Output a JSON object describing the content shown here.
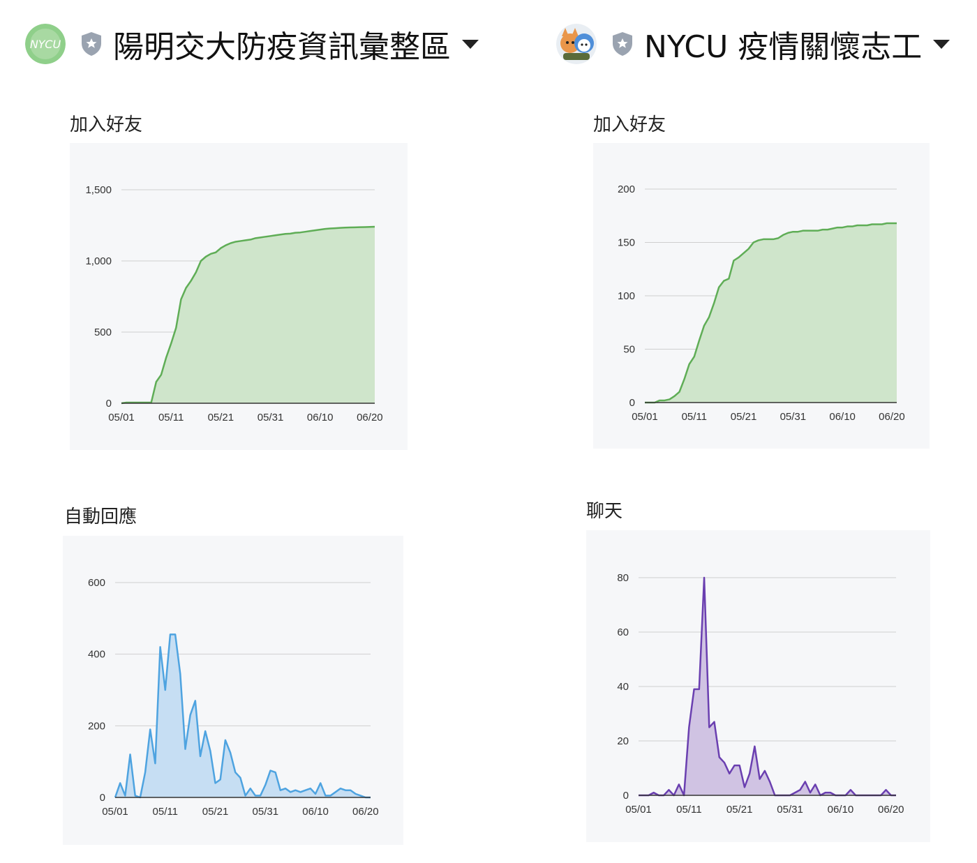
{
  "accounts": [
    {
      "name": "陽明交大防疫資訊彙整區",
      "avatar_text": "NYCU",
      "shield_icon": "shield-star-icon",
      "dropdown_icon": "caret-down-icon"
    },
    {
      "name": "NYCU 疫情關懷志工",
      "avatar_icon": "mascot-avatar",
      "shield_icon": "shield-star-icon",
      "dropdown_icon": "caret-down-icon"
    }
  ],
  "colors": {
    "green_line": "#5fad56",
    "green_fill": "#cfe5cb",
    "blue_line": "#4ea3e0",
    "blue_fill": "#c6def3",
    "purple_line": "#6a3fb0",
    "purple_fill": "#d0c3e3",
    "grid": "#cfcfcf",
    "panel_bg": "#f6f7f9"
  },
  "chart_data": [
    {
      "type": "area",
      "title": "加入好友",
      "x_ticks": [
        "05/01",
        "05/11",
        "05/21",
        "05/31",
        "06/10",
        "06/20"
      ],
      "y_ticks": [
        "0",
        "500",
        "1,000",
        "1,500"
      ],
      "ylim": [
        0,
        1500
      ],
      "x": [
        0,
        1,
        2,
        3,
        4,
        5,
        6,
        7,
        8,
        9,
        10,
        11,
        12,
        13,
        14,
        15,
        16,
        17,
        18,
        19,
        20,
        21,
        22,
        23,
        24,
        25,
        26,
        27,
        28,
        29,
        30,
        31,
        32,
        33,
        34,
        35,
        36,
        37,
        38,
        39,
        40,
        41,
        42,
        43,
        44,
        45,
        46,
        47,
        48,
        49,
        50,
        51
      ],
      "values": [
        0,
        5,
        5,
        5,
        5,
        5,
        5,
        150,
        200,
        320,
        420,
        530,
        730,
        810,
        860,
        920,
        1000,
        1030,
        1050,
        1060,
        1090,
        1110,
        1125,
        1135,
        1140,
        1145,
        1150,
        1160,
        1165,
        1170,
        1175,
        1180,
        1185,
        1190,
        1192,
        1198,
        1200,
        1205,
        1210,
        1215,
        1220,
        1225,
        1228,
        1230,
        1232,
        1234,
        1235,
        1236,
        1237,
        1238,
        1239,
        1240
      ],
      "series_name": "加入好友"
    },
    {
      "type": "area",
      "title": "加入好友",
      "x_ticks": [
        "05/01",
        "05/11",
        "05/21",
        "05/31",
        "06/10",
        "06/20"
      ],
      "y_ticks": [
        "0",
        "50",
        "100",
        "150",
        "200"
      ],
      "ylim": [
        0,
        200
      ],
      "x": [
        0,
        1,
        2,
        3,
        4,
        5,
        6,
        7,
        8,
        9,
        10,
        11,
        12,
        13,
        14,
        15,
        16,
        17,
        18,
        19,
        20,
        21,
        22,
        23,
        24,
        25,
        26,
        27,
        28,
        29,
        30,
        31,
        32,
        33,
        34,
        35,
        36,
        37,
        38,
        39,
        40,
        41,
        42,
        43,
        44,
        45,
        46,
        47,
        48,
        49,
        50,
        51
      ],
      "values": [
        0,
        0,
        0,
        2,
        2,
        3,
        6,
        10,
        22,
        36,
        43,
        58,
        72,
        80,
        93,
        108,
        114,
        116,
        133,
        136,
        140,
        144,
        150,
        152,
        153,
        153,
        153,
        154,
        157,
        159,
        160,
        160,
        161,
        161,
        161,
        161,
        162,
        162,
        163,
        164,
        164,
        165,
        165,
        166,
        166,
        166,
        167,
        167,
        167,
        168,
        168,
        168
      ],
      "series_name": "加入好友"
    },
    {
      "type": "area",
      "title": "自動回應",
      "x_ticks": [
        "05/01",
        "05/11",
        "05/21",
        "05/31",
        "06/10",
        "06/20"
      ],
      "y_ticks": [
        "0",
        "200",
        "400",
        "600"
      ],
      "ylim": [
        0,
        600
      ],
      "x": [
        0,
        1,
        2,
        3,
        4,
        5,
        6,
        7,
        8,
        9,
        10,
        11,
        12,
        13,
        14,
        15,
        16,
        17,
        18,
        19,
        20,
        21,
        22,
        23,
        24,
        25,
        26,
        27,
        28,
        29,
        30,
        31,
        32,
        33,
        34,
        35,
        36,
        37,
        38,
        39,
        40,
        41,
        42,
        43,
        44,
        45,
        46,
        47,
        48,
        49,
        50,
        51
      ],
      "values": [
        0,
        40,
        5,
        120,
        5,
        0,
        70,
        190,
        95,
        420,
        300,
        455,
        455,
        345,
        135,
        230,
        270,
        115,
        185,
        130,
        40,
        50,
        160,
        125,
        70,
        55,
        5,
        25,
        5,
        5,
        35,
        75,
        70,
        20,
        25,
        15,
        20,
        15,
        20,
        25,
        10,
        40,
        5,
        5,
        15,
        25,
        20,
        20,
        10,
        5,
        0,
        0
      ],
      "series_name": "自動回應"
    },
    {
      "type": "area",
      "title": "聊天",
      "x_ticks": [
        "05/01",
        "05/11",
        "05/21",
        "05/31",
        "06/10",
        "06/20"
      ],
      "y_ticks": [
        "0",
        "20",
        "40",
        "60",
        "80"
      ],
      "ylim": [
        0,
        80
      ],
      "x": [
        0,
        1,
        2,
        3,
        4,
        5,
        6,
        7,
        8,
        9,
        10,
        11,
        12,
        13,
        14,
        15,
        16,
        17,
        18,
        19,
        20,
        21,
        22,
        23,
        24,
        25,
        26,
        27,
        28,
        29,
        30,
        31,
        32,
        33,
        34,
        35,
        36,
        37,
        38,
        39,
        40,
        41,
        42,
        43,
        44,
        45,
        46,
        47,
        48,
        49,
        50,
        51
      ],
      "values": [
        0,
        0,
        0,
        1,
        0,
        0,
        2,
        0,
        4,
        0,
        25,
        39,
        39,
        80,
        25,
        27,
        14,
        12,
        8,
        11,
        11,
        3,
        8,
        18,
        6,
        9,
        5,
        0,
        0,
        0,
        0,
        1,
        2,
        5,
        1,
        4,
        0,
        1,
        1,
        0,
        0,
        0,
        2,
        0,
        0,
        0,
        0,
        0,
        0,
        2,
        0,
        0
      ],
      "series_name": "聊天"
    }
  ]
}
